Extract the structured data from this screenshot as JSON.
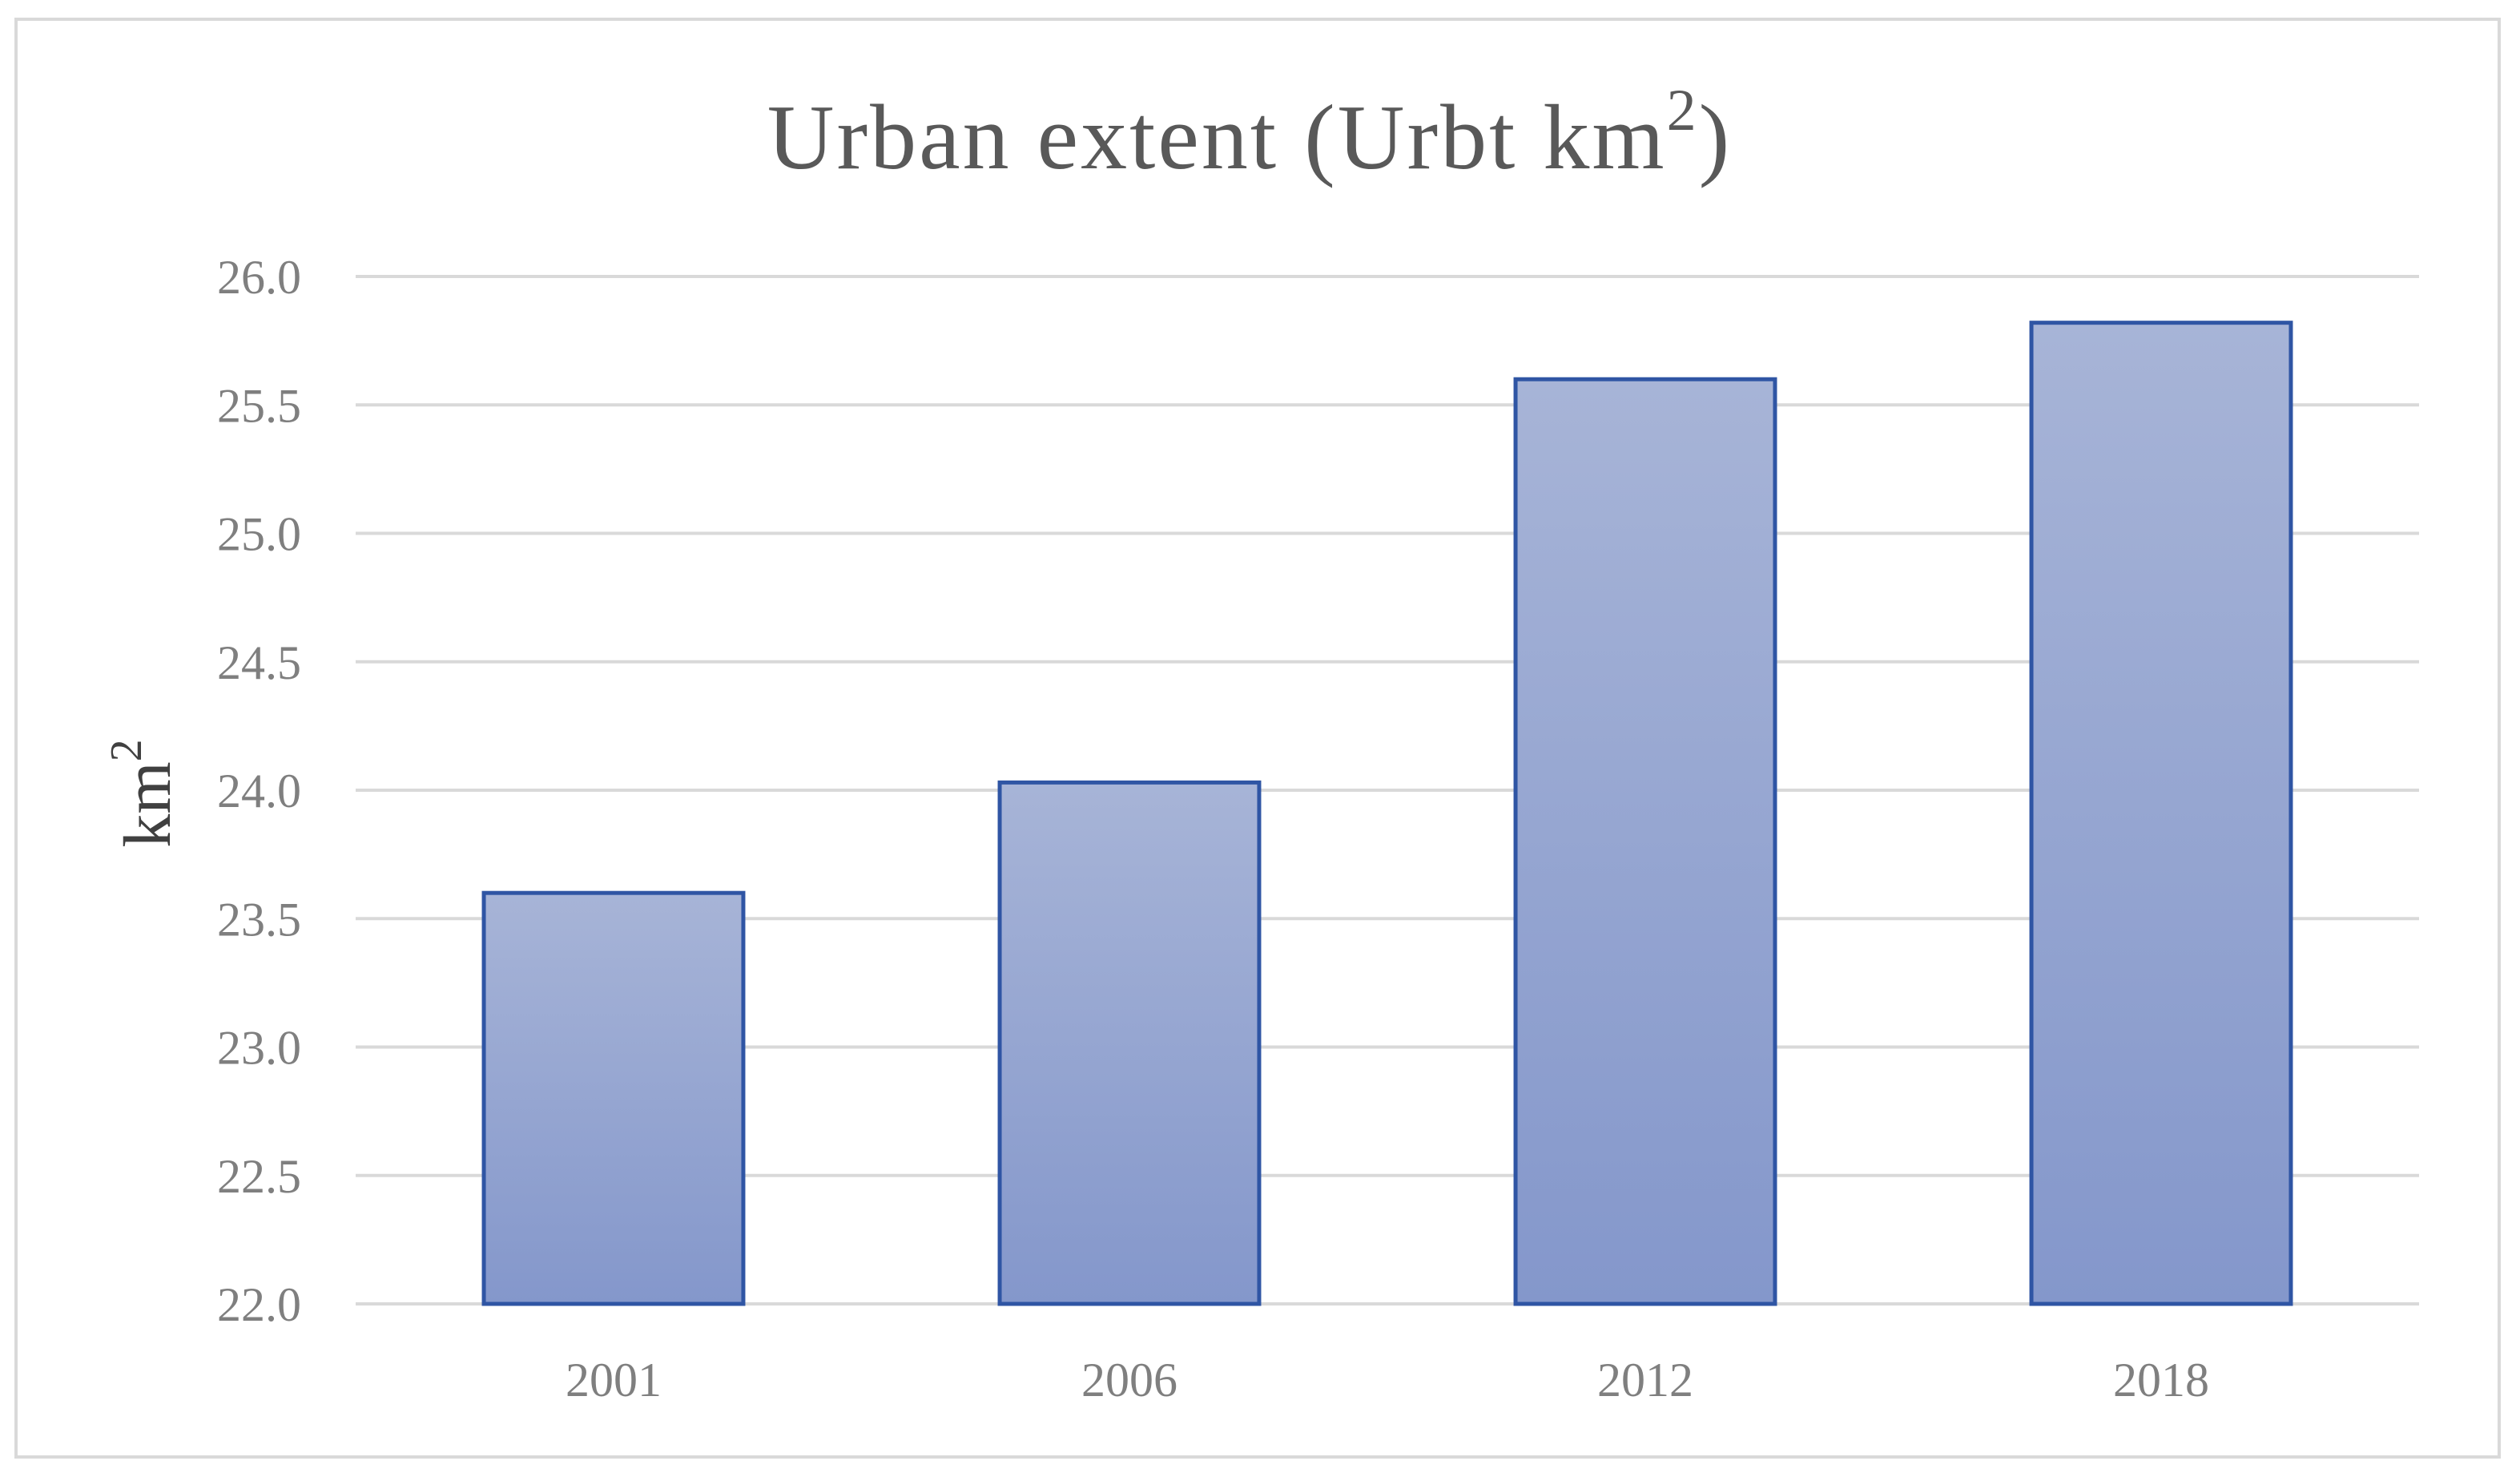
{
  "chart_data": {
    "type": "bar",
    "title": "Urban extent (Urbt km",
    "title_superscript": "2",
    "title_suffix": ")",
    "xlabel": "",
    "ylabel": "km",
    "ylabel_superscript": "2",
    "categories": [
      "2001",
      "2006",
      "2012",
      "2018"
    ],
    "values": [
      23.6,
      24.03,
      25.6,
      25.82
    ],
    "ylim": [
      22.0,
      26.0
    ],
    "yticks": [
      "22.0",
      "22.5",
      "23.0",
      "23.5",
      "24.0",
      "24.5",
      "25.0",
      "25.5",
      "26.0"
    ],
    "grid": true,
    "legend": "none",
    "colors": {
      "bar_fill_top": "#a7b4d7",
      "bar_fill_bottom": "#8497cb",
      "bar_border": "#2f55a4",
      "grid": "#d9d9d9",
      "title": "#595959",
      "tick_label": "#7f7f7f",
      "axis_label": "#404040"
    }
  }
}
